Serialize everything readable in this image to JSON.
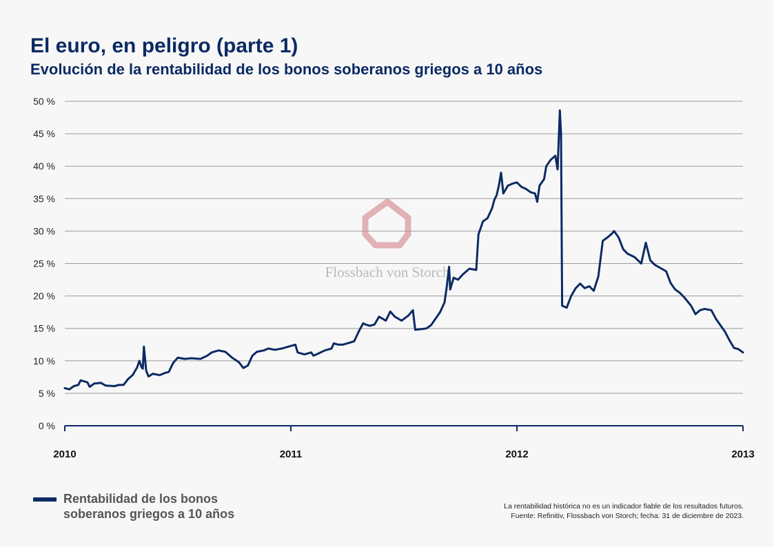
{
  "title": "El euro, en peligro (parte 1)",
  "subtitle": "Evolución de la rentabilidad de los bonos soberanos griegos a 10 años",
  "watermark": "Flossbach von Storch",
  "colors": {
    "line": "#0b2a63",
    "grid": "#9a9a9a",
    "axis": "#0b2a63",
    "logo": "#d99aa0"
  },
  "legend": {
    "label": "Rentabilidad de los bonos soberanos griegos a 10 años"
  },
  "notes": {
    "disclaimer": "La rentabilidad histórica no es un indicador fiable de los resultados futuros.",
    "source": "Fuente: Refinitiv, Flossbach von Storch; fecha: 31 de diciembre de 2023."
  },
  "chart_data": {
    "type": "line",
    "xlabel": "",
    "ylabel": "",
    "x_range": [
      2010,
      2013
    ],
    "ylim": [
      0,
      50
    ],
    "x_ticks": [
      {
        "value": 2010,
        "label": "2010"
      },
      {
        "value": 2011,
        "label": "2011"
      },
      {
        "value": 2012,
        "label": "2012"
      },
      {
        "value": 2013,
        "label": "2013"
      }
    ],
    "y_ticks": [
      {
        "value": 0,
        "label": "0 %"
      },
      {
        "value": 5,
        "label": "5 %"
      },
      {
        "value": 10,
        "label": "10 %"
      },
      {
        "value": 15,
        "label": "15 %"
      },
      {
        "value": 20,
        "label": "20 %"
      },
      {
        "value": 25,
        "label": "25 %"
      },
      {
        "value": 30,
        "label": "30 %"
      },
      {
        "value": 35,
        "label": "35 %"
      },
      {
        "value": 40,
        "label": "40 %"
      },
      {
        "value": 45,
        "label": "45 %"
      },
      {
        "value": 50,
        "label": "50 %"
      }
    ],
    "grid": true,
    "legend_position": "bottom-left",
    "series": [
      {
        "name": "Rentabilidad de los bonos soberanos griegos a 10 años",
        "points": [
          [
            2010.0,
            5.8
          ],
          [
            2010.02,
            5.6
          ],
          [
            2010.04,
            6.1
          ],
          [
            2010.06,
            6.3
          ],
          [
            2010.07,
            7.0
          ],
          [
            2010.1,
            6.7
          ],
          [
            2010.11,
            6.0
          ],
          [
            2010.13,
            6.5
          ],
          [
            2010.16,
            6.6
          ],
          [
            2010.18,
            6.2
          ],
          [
            2010.22,
            6.1
          ],
          [
            2010.24,
            6.3
          ],
          [
            2010.26,
            6.3
          ],
          [
            2010.28,
            7.2
          ],
          [
            2010.3,
            7.8
          ],
          [
            2010.32,
            9.0
          ],
          [
            2010.33,
            10.0
          ],
          [
            2010.34,
            9.0
          ],
          [
            2010.345,
            8.8
          ],
          [
            2010.35,
            12.2
          ],
          [
            2010.36,
            8.5
          ],
          [
            2010.37,
            7.6
          ],
          [
            2010.39,
            8.0
          ],
          [
            2010.42,
            7.8
          ],
          [
            2010.44,
            8.1
          ],
          [
            2010.46,
            8.3
          ],
          [
            2010.48,
            9.7
          ],
          [
            2010.5,
            10.5
          ],
          [
            2010.53,
            10.3
          ],
          [
            2010.56,
            10.4
          ],
          [
            2010.6,
            10.3
          ],
          [
            2010.63,
            10.8
          ],
          [
            2010.65,
            11.3
          ],
          [
            2010.68,
            11.6
          ],
          [
            2010.71,
            11.4
          ],
          [
            2010.74,
            10.5
          ],
          [
            2010.77,
            9.8
          ],
          [
            2010.79,
            8.9
          ],
          [
            2010.81,
            9.3
          ],
          [
            2010.83,
            10.8
          ],
          [
            2010.85,
            11.4
          ],
          [
            2010.88,
            11.6
          ],
          [
            2010.9,
            11.9
          ],
          [
            2010.93,
            11.7
          ],
          [
            2010.96,
            11.9
          ],
          [
            2010.99,
            12.2
          ],
          [
            2011.02,
            12.5
          ],
          [
            2011.03,
            11.3
          ],
          [
            2011.06,
            11.0
          ],
          [
            2011.09,
            11.3
          ],
          [
            2011.1,
            10.8
          ],
          [
            2011.12,
            11.1
          ],
          [
            2011.15,
            11.6
          ],
          [
            2011.18,
            11.9
          ],
          [
            2011.19,
            12.7
          ],
          [
            2011.21,
            12.5
          ],
          [
            2011.23,
            12.5
          ],
          [
            2011.26,
            12.8
          ],
          [
            2011.28,
            13.0
          ],
          [
            2011.3,
            14.5
          ],
          [
            2011.32,
            15.8
          ],
          [
            2011.33,
            15.6
          ],
          [
            2011.35,
            15.4
          ],
          [
            2011.37,
            15.6
          ],
          [
            2011.39,
            16.8
          ],
          [
            2011.42,
            16.2
          ],
          [
            2011.44,
            17.6
          ],
          [
            2011.46,
            16.8
          ],
          [
            2011.49,
            16.2
          ],
          [
            2011.52,
            17.0
          ],
          [
            2011.54,
            17.8
          ],
          [
            2011.55,
            14.8
          ],
          [
            2011.58,
            14.9
          ],
          [
            2011.6,
            15.0
          ],
          [
            2011.62,
            15.5
          ],
          [
            2011.64,
            16.5
          ],
          [
            2011.66,
            17.5
          ],
          [
            2011.68,
            19.0
          ],
          [
            2011.69,
            21.5
          ],
          [
            2011.7,
            24.5
          ],
          [
            2011.705,
            21.0
          ],
          [
            2011.72,
            22.8
          ],
          [
            2011.74,
            22.5
          ],
          [
            2011.76,
            23.3
          ],
          [
            2011.79,
            24.2
          ],
          [
            2011.82,
            24.0
          ],
          [
            2011.83,
            29.5
          ],
          [
            2011.85,
            31.5
          ],
          [
            2011.87,
            32.0
          ],
          [
            2011.89,
            33.5
          ],
          [
            2011.9,
            34.8
          ],
          [
            2011.91,
            35.5
          ],
          [
            2011.92,
            37.0
          ],
          [
            2011.93,
            39.0
          ],
          [
            2011.94,
            35.8
          ],
          [
            2011.96,
            37.0
          ],
          [
            2011.98,
            37.3
          ],
          [
            2012.0,
            37.5
          ],
          [
            2012.02,
            36.8
          ],
          [
            2012.04,
            36.5
          ],
          [
            2012.06,
            36.0
          ],
          [
            2012.08,
            35.8
          ],
          [
            2012.09,
            34.5
          ],
          [
            2012.1,
            37.0
          ],
          [
            2012.12,
            38.0
          ],
          [
            2012.13,
            40.0
          ],
          [
            2012.15,
            41.0
          ],
          [
            2012.17,
            41.6
          ],
          [
            2012.18,
            39.5
          ],
          [
            2012.19,
            48.6
          ],
          [
            2012.195,
            45.0
          ],
          [
            2012.2,
            18.5
          ],
          [
            2012.22,
            18.2
          ],
          [
            2012.24,
            20.0
          ],
          [
            2012.26,
            21.2
          ],
          [
            2012.28,
            21.9
          ],
          [
            2012.3,
            21.2
          ],
          [
            2012.32,
            21.5
          ],
          [
            2012.34,
            20.8
          ],
          [
            2012.36,
            23.0
          ],
          [
            2012.38,
            28.5
          ],
          [
            2012.4,
            29.0
          ],
          [
            2012.42,
            29.6
          ],
          [
            2012.43,
            30.0
          ],
          [
            2012.45,
            29.0
          ],
          [
            2012.47,
            27.2
          ],
          [
            2012.49,
            26.5
          ],
          [
            2012.52,
            26.0
          ],
          [
            2012.55,
            25.0
          ],
          [
            2012.57,
            28.2
          ],
          [
            2012.59,
            25.5
          ],
          [
            2012.61,
            24.8
          ],
          [
            2012.64,
            24.2
          ],
          [
            2012.66,
            23.8
          ],
          [
            2012.68,
            22.0
          ],
          [
            2012.7,
            21.0
          ],
          [
            2012.72,
            20.5
          ],
          [
            2012.74,
            19.8
          ],
          [
            2012.77,
            18.5
          ],
          [
            2012.79,
            17.2
          ],
          [
            2012.81,
            17.8
          ],
          [
            2012.83,
            18.0
          ],
          [
            2012.86,
            17.8
          ],
          [
            2012.88,
            16.5
          ],
          [
            2012.9,
            15.5
          ],
          [
            2012.92,
            14.5
          ],
          [
            2012.94,
            13.2
          ],
          [
            2012.96,
            12.0
          ],
          [
            2012.98,
            11.8
          ],
          [
            2013.0,
            11.3
          ]
        ]
      }
    ]
  }
}
